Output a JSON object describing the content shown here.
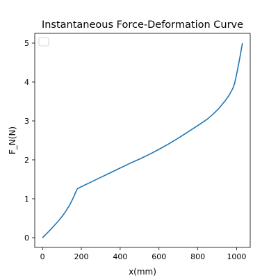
{
  "chart_data": {
    "type": "line",
    "title": "Instantaneous Force-Deformation Curve",
    "xlabel": "x(mm)",
    "ylabel": "F_N(N)",
    "xlim": [
      -40,
      1070
    ],
    "ylim": [
      -0.25,
      5.25
    ],
    "xticks": [
      0,
      200,
      400,
      600,
      800,
      1000
    ],
    "yticks": [
      0,
      1,
      2,
      3,
      4,
      5
    ],
    "grid": false,
    "legend": "top-left",
    "series": [
      {
        "color": "#1f77b4",
        "x": [
          0,
          20,
          40,
          60,
          80,
          100,
          120,
          140,
          160,
          170,
          180,
          200,
          250,
          300,
          350,
          400,
          450,
          500,
          550,
          600,
          650,
          700,
          750,
          800,
          850,
          880,
          910,
          940,
          960,
          980,
          990,
          1000,
          1010,
          1020,
          1030
        ],
        "y": [
          0,
          0.1,
          0.2,
          0.31,
          0.42,
          0.54,
          0.68,
          0.84,
          1.04,
          1.16,
          1.26,
          1.31,
          1.43,
          1.55,
          1.67,
          1.79,
          1.91,
          2.02,
          2.14,
          2.27,
          2.41,
          2.56,
          2.72,
          2.88,
          3.05,
          3.18,
          3.33,
          3.51,
          3.65,
          3.83,
          3.97,
          4.2,
          4.45,
          4.72,
          5.0
        ]
      }
    ]
  }
}
